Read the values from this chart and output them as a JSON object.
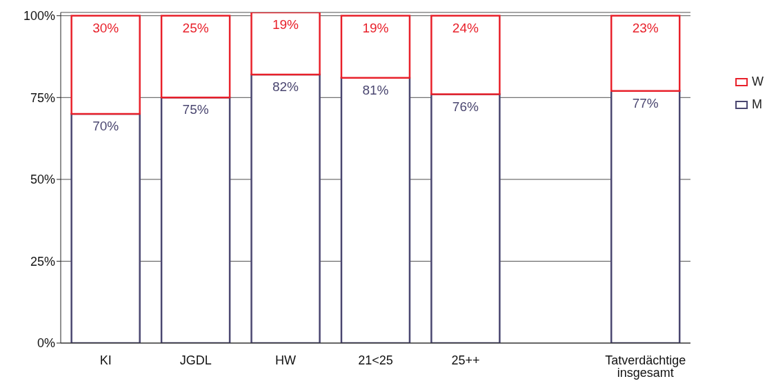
{
  "chart_data": {
    "type": "bar",
    "stacked": true,
    "categories": [
      "KI",
      "JGDL",
      "HW",
      "21<25",
      "25++",
      null,
      "Tatverdächtige insgesamt"
    ],
    "series": [
      {
        "name": "M",
        "color": "#4a4670",
        "values": [
          70,
          75,
          82,
          81,
          76,
          null,
          77
        ],
        "value_labels": [
          "70%",
          "75%",
          "82%",
          "81%",
          "76%",
          null,
          "77%"
        ]
      },
      {
        "name": "W",
        "color": "#e8202a",
        "values": [
          30,
          25,
          19,
          19,
          24,
          null,
          23
        ],
        "value_labels": [
          "30%",
          "25%",
          "19%",
          "19%",
          "24%",
          null,
          "23%"
        ]
      }
    ],
    "ylim": [
      0,
      101
    ],
    "yticks": [
      {
        "value": 0,
        "label": "0%"
      },
      {
        "value": 25,
        "label": "25%"
      },
      {
        "value": 50,
        "label": "50%"
      },
      {
        "value": 75,
        "label": "75%"
      },
      {
        "value": 100,
        "label": "100%"
      }
    ],
    "grid": "y",
    "legend": "right"
  }
}
